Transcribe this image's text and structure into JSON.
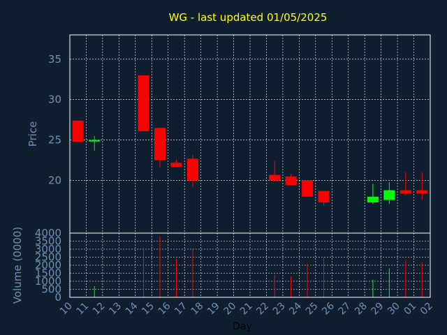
{
  "chart_data": {
    "type": "candlestick",
    "title": "WG - last updated 01/05/2025",
    "price_ylabel": "Price",
    "volume_ylabel": "Volume (0000)",
    "xlabel": "Day",
    "x_ticks": [
      "10",
      "11",
      "12",
      "13",
      "14",
      "15",
      "16",
      "17",
      "18",
      "19",
      "20",
      "21",
      "22",
      "23",
      "24",
      "25",
      "26",
      "27",
      "28",
      "29",
      "30",
      "01",
      "02"
    ],
    "price_ylim": [
      13.5,
      38
    ],
    "price_yticks": [
      20,
      25,
      30,
      35
    ],
    "volume_ylim": [
      0,
      4000
    ],
    "volume_yticks": [
      0,
      500,
      1000,
      1500,
      2000,
      2500,
      3000,
      3500,
      4000
    ],
    "grid": true,
    "colors": {
      "up": "#00ff00",
      "down": "#ff0000",
      "background": "#0f1f30",
      "title": "#ffff00",
      "axis": "#6f8fb3",
      "grid": "#ffffff"
    },
    "candles": [
      {
        "day": "10",
        "open": 27.4,
        "high": 27.4,
        "low": 24.8,
        "close": 24.8,
        "volume": 0
      },
      {
        "day": "11",
        "open": 24.9,
        "high": 25.5,
        "low": 23.7,
        "close": 25.0,
        "volume": 700
      },
      {
        "day": "14",
        "open": 33.0,
        "high": 33.0,
        "low": 26.1,
        "close": 26.1,
        "volume": 3100
      },
      {
        "day": "15",
        "open": 26.5,
        "high": 26.5,
        "low": 21.6,
        "close": 22.5,
        "volume": 3800
      },
      {
        "day": "16",
        "open": 22.2,
        "high": 22.6,
        "low": 21.7,
        "close": 21.7,
        "volume": 2400
      },
      {
        "day": "17",
        "open": 22.7,
        "high": 23.2,
        "low": 19.2,
        "close": 20.0,
        "volume": 3000
      },
      {
        "day": "22",
        "open": 20.7,
        "high": 22.4,
        "low": 20.0,
        "close": 20.0,
        "volume": 1400
      },
      {
        "day": "23",
        "open": 20.5,
        "high": 20.8,
        "low": 19.4,
        "close": 19.4,
        "volume": 1300
      },
      {
        "day": "24",
        "open": 20.0,
        "high": 20.0,
        "low": 18.0,
        "close": 18.0,
        "volume": 2100
      },
      {
        "day": "25",
        "open": 18.7,
        "high": 18.7,
        "low": 16.9,
        "close": 17.3,
        "volume": 2500
      },
      {
        "day": "28",
        "open": 17.3,
        "high": 19.6,
        "low": 17.1,
        "close": 18.0,
        "volume": 1100
      },
      {
        "day": "29",
        "open": 17.6,
        "high": 19.8,
        "low": 17.1,
        "close": 18.8,
        "volume": 1800
      },
      {
        "day": "30",
        "open": 18.8,
        "high": 21.0,
        "low": 18.2,
        "close": 18.4,
        "volume": 2300
      },
      {
        "day": "01",
        "open": 18.8,
        "high": 21.0,
        "low": 17.6,
        "close": 18.4,
        "volume": 2200
      }
    ]
  }
}
